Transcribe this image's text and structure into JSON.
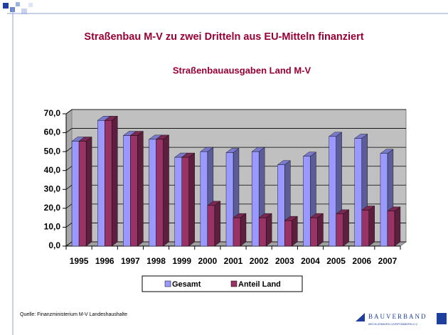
{
  "slide_title": "Straßenbau M-V zu zwei Dritteln aus EU-Mitteln finanziert",
  "source": "Quelle: Finanzministerium M-V Landeshaushalte",
  "logo": {
    "name": "BAUVERBAND",
    "subtitle": "MECKLENBURG-VORPOMMERN e.V."
  },
  "chart_data": {
    "type": "bar",
    "title": "Straßenbauausgaben Land M-V",
    "categories": [
      "1995",
      "1996",
      "1997",
      "1998",
      "1999",
      "2000",
      "2001",
      "2002",
      "2003",
      "2004",
      "2005",
      "2006",
      "2007"
    ],
    "series": [
      {
        "name": "Gesamt",
        "color": "#9999ff",
        "values": [
          55.5,
          66.5,
          58.5,
          56.5,
          47,
          50,
          49.5,
          50,
          43,
          47.5,
          58,
          57,
          49
        ]
      },
      {
        "name": "Anteil Land",
        "color": "#993366",
        "values": [
          55.5,
          66.5,
          58.5,
          56.5,
          47,
          21.5,
          15,
          15,
          13.5,
          15,
          17,
          19,
          18.5
        ]
      }
    ],
    "ylim": [
      0,
      70
    ],
    "yticks": [
      {
        "value": 0,
        "label": "0,0"
      },
      {
        "value": 10,
        "label": "10,0"
      },
      {
        "value": 20,
        "label": "20,0"
      },
      {
        "value": 30,
        "label": "30,0"
      },
      {
        "value": 40,
        "label": "40,0"
      },
      {
        "value": 50,
        "label": "50,0"
      },
      {
        "value": 60,
        "label": "60,0"
      },
      {
        "value": 70,
        "label": "70,0"
      }
    ],
    "grid": true,
    "legend": "bottom"
  }
}
